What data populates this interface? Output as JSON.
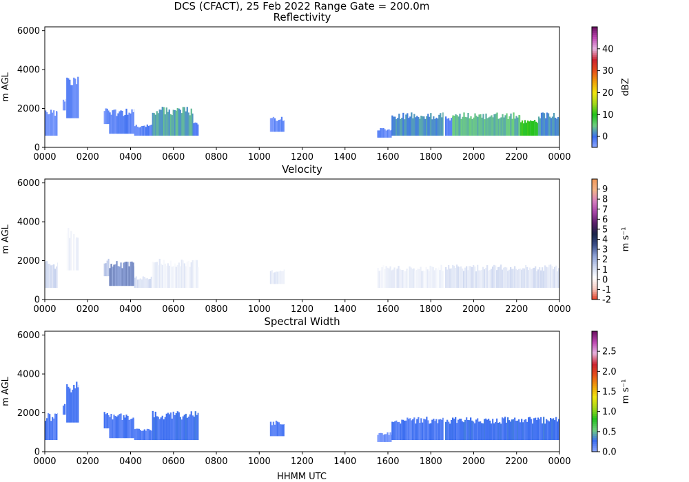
{
  "figure": {
    "suptitle": "DCS (CFACT), 25 Feb 2022 Range Gate = 200.0m",
    "xlabel": "HHMM UTC"
  },
  "chart_data": [
    {
      "type": "heatmap",
      "title": "Reflectivity",
      "ylabel": "m AGL",
      "xlim": [
        0,
        24
      ],
      "ylim": [
        0,
        6200
      ],
      "x_ticks": [
        0,
        2,
        4,
        6,
        8,
        10,
        12,
        14,
        16,
        18,
        20,
        22,
        24
      ],
      "x_tick_labels": [
        "0000",
        "0200",
        "0400",
        "0600",
        "0800",
        "1000",
        "1200",
        "1400",
        "1600",
        "1800",
        "2000",
        "2200",
        "0000"
      ],
      "y_ticks": [
        0,
        2000,
        4000,
        6000
      ],
      "y_tick_labels": [
        "0",
        "2000",
        "4000",
        "6000"
      ],
      "colorbar": {
        "label": "dBZ",
        "range": [
          -5,
          50
        ],
        "ticks": [
          0,
          10,
          20,
          30,
          40
        ],
        "tick_labels": [
          "0",
          "10",
          "20",
          "30",
          "40"
        ],
        "colors": [
          "#8fa8ff",
          "#3c6ef0",
          "#6fcf80",
          "#22c21c",
          "#a6d81a",
          "#f1e60f",
          "#f0a00a",
          "#e8501a",
          "#cc2330",
          "#e8b6e0",
          "#c04ab4",
          "#6a1060"
        ]
      },
      "echo_regions": [
        {
          "start": "0000",
          "end": "0035",
          "base": 600,
          "top": 2000,
          "value": -3
        },
        {
          "start": "0050",
          "end": "0058",
          "base": 1900,
          "top": 2500,
          "value": -3
        },
        {
          "start": "0100",
          "end": "0135",
          "base": 1500,
          "top": 3700,
          "value": -2
        },
        {
          "start": "0245",
          "end": "0300",
          "base": 1200,
          "top": 2100,
          "value": -3
        },
        {
          "start": "0300",
          "end": "0410",
          "base": 700,
          "top": 2000,
          "value": -2
        },
        {
          "start": "0410",
          "end": "0500",
          "base": 600,
          "top": 1200,
          "value": -2
        },
        {
          "start": "0500",
          "end": "0655",
          "base": 600,
          "top": 2100,
          "value": 3
        },
        {
          "start": "0655",
          "end": "0710",
          "base": 600,
          "top": 1300,
          "value": -2
        },
        {
          "start": "1030",
          "end": "1110",
          "base": 800,
          "top": 1600,
          "value": -3
        },
        {
          "start": "1530",
          "end": "1610",
          "base": 500,
          "top": 1000,
          "value": -3
        },
        {
          "start": "1610",
          "end": "1835",
          "base": 600,
          "top": 1800,
          "value": 2
        },
        {
          "start": "1840",
          "end": "1900",
          "base": 600,
          "top": 1700,
          "value": -2
        },
        {
          "start": "1900",
          "end": "2210",
          "base": 600,
          "top": 1800,
          "value": 4
        },
        {
          "start": "2210",
          "end": "2300",
          "base": 600,
          "top": 1500,
          "value": 10
        },
        {
          "start": "2300",
          "end": "2400",
          "base": 600,
          "top": 1800,
          "value": 2
        }
      ]
    },
    {
      "type": "heatmap",
      "title": "Velocity",
      "ylabel": "m AGL",
      "xlim": [
        0,
        24
      ],
      "ylim": [
        0,
        6200
      ],
      "x_ticks": [
        0,
        2,
        4,
        6,
        8,
        10,
        12,
        14,
        16,
        18,
        20,
        22,
        24
      ],
      "x_tick_labels": [
        "0000",
        "0200",
        "0400",
        "0600",
        "0800",
        "1000",
        "1200",
        "1400",
        "1600",
        "1800",
        "2000",
        "2200",
        "0000"
      ],
      "y_ticks": [
        0,
        2000,
        4000,
        6000
      ],
      "y_tick_labels": [
        "0",
        "2000",
        "4000",
        "6000"
      ],
      "colorbar": {
        "label": "m s⁻¹",
        "range": [
          -2,
          10
        ],
        "ticks": [
          -2,
          -1,
          0,
          1,
          2,
          3,
          4,
          5,
          6,
          7,
          8,
          9
        ],
        "tick_labels": [
          "-2",
          "-1",
          "0",
          "1",
          "2",
          "3",
          "4",
          "5",
          "6",
          "7",
          "8",
          "9"
        ],
        "colors": [
          "#e23a22",
          "#f6c9c0",
          "#ffffff",
          "#cdd7f0",
          "#8ea2d8",
          "#3b4f8a",
          "#1a2448",
          "#5a1f6a",
          "#a845a8",
          "#d77fc0",
          "#f3b48a",
          "#f39a5a"
        ]
      },
      "echo_regions": [
        {
          "start": "0000",
          "end": "0035",
          "base": 600,
          "top": 2000,
          "value": 1.2
        },
        {
          "start": "0100",
          "end": "0135",
          "base": 1500,
          "top": 3700,
          "value": 0.4
        },
        {
          "start": "0245",
          "end": "0300",
          "base": 1200,
          "top": 2100,
          "value": 1.5
        },
        {
          "start": "0300",
          "end": "0410",
          "base": 700,
          "top": 2000,
          "value": 2.5
        },
        {
          "start": "0410",
          "end": "0500",
          "base": 600,
          "top": 1200,
          "value": 1.0
        },
        {
          "start": "0500",
          "end": "0710",
          "base": 600,
          "top": 2100,
          "value": 0.6
        },
        {
          "start": "1030",
          "end": "1110",
          "base": 800,
          "top": 1600,
          "value": 0.8
        },
        {
          "start": "1530",
          "end": "1835",
          "base": 600,
          "top": 1800,
          "value": 0.6
        },
        {
          "start": "1840",
          "end": "2400",
          "base": 600,
          "top": 1800,
          "value": 0.9
        }
      ]
    },
    {
      "type": "heatmap",
      "title": "Spectral Width",
      "ylabel": "m AGL",
      "xlim": [
        0,
        24
      ],
      "ylim": [
        0,
        6200
      ],
      "x_ticks": [
        0,
        2,
        4,
        6,
        8,
        10,
        12,
        14,
        16,
        18,
        20,
        22,
        24
      ],
      "x_tick_labels": [
        "0000",
        "0200",
        "0400",
        "0600",
        "0800",
        "1000",
        "1200",
        "1400",
        "1600",
        "1800",
        "2000",
        "2200",
        "0000"
      ],
      "y_ticks": [
        0,
        2000,
        4000,
        6000
      ],
      "y_tick_labels": [
        "0",
        "2000",
        "4000",
        "6000"
      ],
      "colorbar": {
        "label": "m s⁻¹",
        "range": [
          0,
          3
        ],
        "ticks": [
          0,
          0.5,
          1,
          1.5,
          2,
          2.5
        ],
        "tick_labels": [
          "0.0",
          "0.5",
          "1.0",
          "1.5",
          "2.0",
          "2.5"
        ],
        "colors": [
          "#8fa8ff",
          "#3c6ef0",
          "#6fcf80",
          "#22c21c",
          "#a6d81a",
          "#f1e60f",
          "#f0a00a",
          "#e8501a",
          "#cc2330",
          "#e8b6e0",
          "#c04ab4",
          "#6a1060"
        ]
      },
      "echo_regions": [
        {
          "start": "0000",
          "end": "0035",
          "base": 600,
          "top": 2000,
          "value": 0.2
        },
        {
          "start": "0050",
          "end": "0058",
          "base": 1900,
          "top": 2500,
          "value": 0.2
        },
        {
          "start": "0100",
          "end": "0135",
          "base": 1500,
          "top": 3700,
          "value": 0.2
        },
        {
          "start": "0245",
          "end": "0300",
          "base": 1200,
          "top": 2100,
          "value": 0.2
        },
        {
          "start": "0300",
          "end": "0410",
          "base": 700,
          "top": 2000,
          "value": 0.2
        },
        {
          "start": "0410",
          "end": "0500",
          "base": 600,
          "top": 1200,
          "value": 0.2
        },
        {
          "start": "0500",
          "end": "0710",
          "base": 600,
          "top": 2100,
          "value": 0.25
        },
        {
          "start": "1030",
          "end": "1110",
          "base": 800,
          "top": 1600,
          "value": 0.2
        },
        {
          "start": "1530",
          "end": "1610",
          "base": 500,
          "top": 1000,
          "value": 0.1
        },
        {
          "start": "1610",
          "end": "1835",
          "base": 600,
          "top": 1800,
          "value": 0.2
        },
        {
          "start": "1840",
          "end": "2400",
          "base": 600,
          "top": 1800,
          "value": 0.25
        }
      ]
    }
  ]
}
